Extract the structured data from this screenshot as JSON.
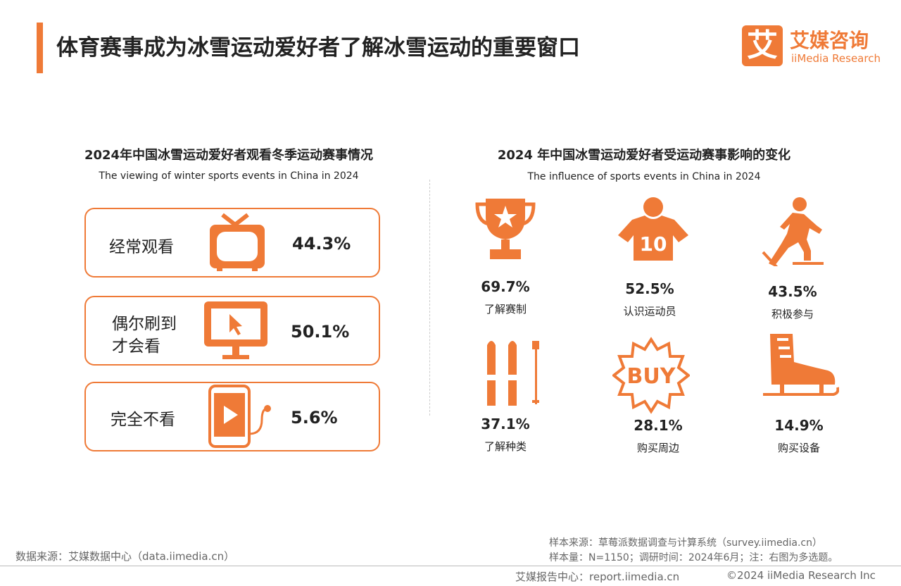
{
  "header": {
    "title": "体育赛事成为冰雪运动爱好者了解冰雪运动的重要窗口"
  },
  "logo": {
    "mark": "艾",
    "name": "艾媒咨询",
    "sub": "iiMedia Research"
  },
  "left": {
    "title": "2024年中国冰雪运动爱好者观看冬季运动赛事情况",
    "subtitle": "The viewing of winter sports events in China in 2024",
    "items": [
      {
        "label_lines": [
          "经常观看"
        ],
        "value": "44.3%"
      },
      {
        "label_lines": [
          "偶尔刷到",
          "才会看"
        ],
        "value": "50.1%"
      },
      {
        "label_lines": [
          "完全不看"
        ],
        "value": "5.6%"
      }
    ]
  },
  "right": {
    "title": "2024 年中国冰雪运动爱好者受运动赛事影响的变化",
    "subtitle": "The influence of sports events in China in 2024",
    "items": [
      {
        "value": "69.7%",
        "label": "了解赛制"
      },
      {
        "value": "52.5%",
        "label": "认识运动员"
      },
      {
        "value": "43.5%",
        "label": "积极参与"
      },
      {
        "value": "37.1%",
        "label": "了解种类"
      },
      {
        "value": "28.1%",
        "label": "购买周边"
      },
      {
        "value": "14.9%",
        "label": "购买设备"
      }
    ]
  },
  "footer": {
    "source": "数据来源：艾媒数据中心（data.iimedia.cn）",
    "sample_source": "样本来源：草莓派数据调查与计算系统（survey.iimedia.cn）",
    "sample_info": "样本量：N=1150；调研时间：2024年6月；注：右图为多选题。",
    "report_center": "艾媒报告中心：report.iimedia.cn",
    "copyright": "©2024  iiMedia Research  Inc"
  }
}
